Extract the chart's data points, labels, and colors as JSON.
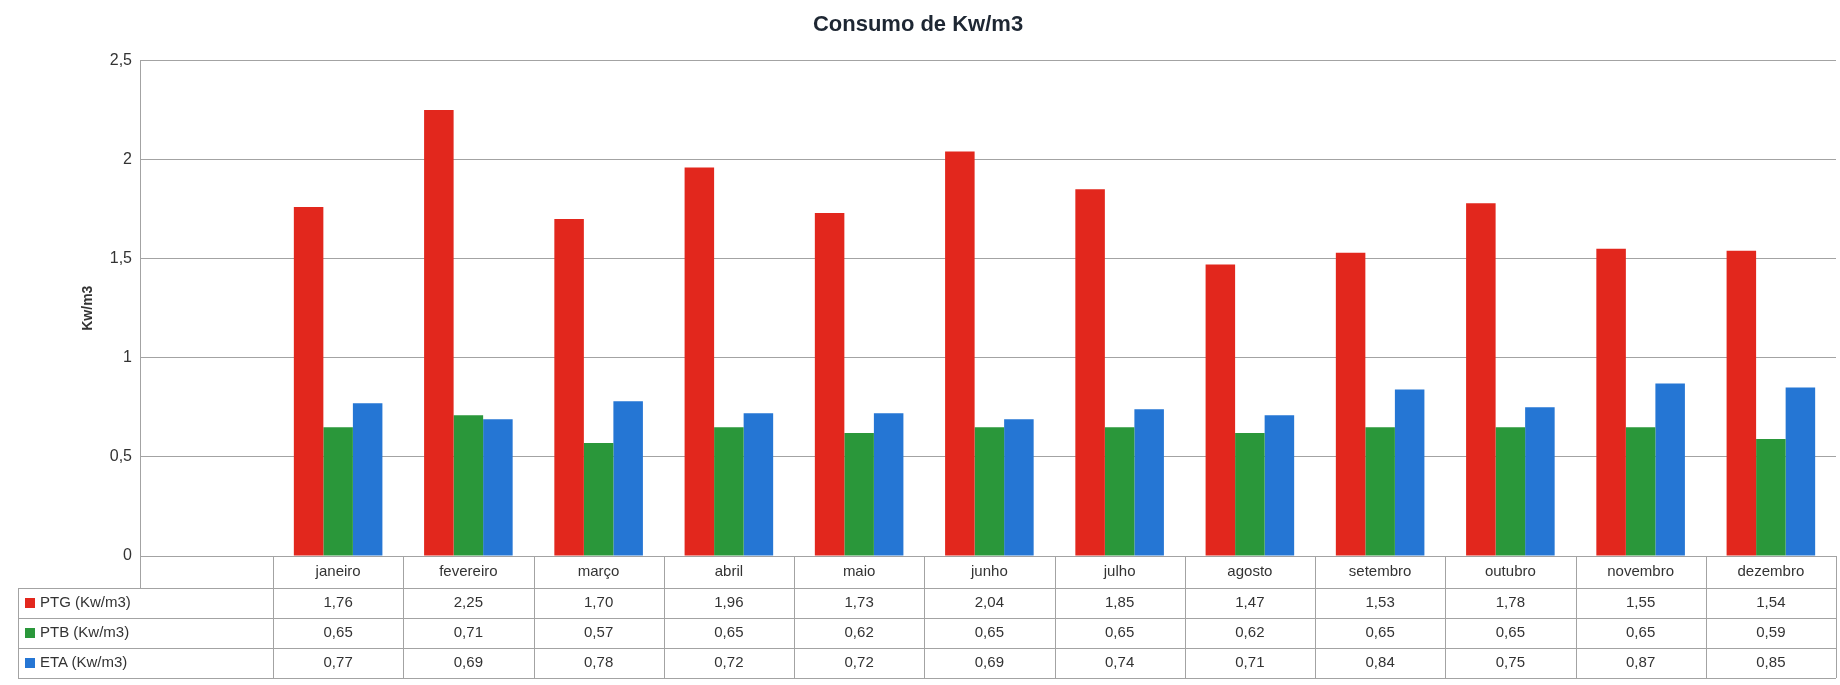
{
  "chart_data": {
    "type": "bar",
    "title": "Consumo de Kw/m3",
    "ylabel": "Kw/m3",
    "categories": [
      "janeiro",
      "fevereiro",
      "março",
      "abril",
      "maio",
      "junho",
      "julho",
      "agosto",
      "setembro",
      "outubro",
      "novembro",
      "dezembro"
    ],
    "series": [
      {
        "name": "PTG (Kw/m3)",
        "color": "#e2271d",
        "values": [
          1.76,
          2.25,
          1.7,
          1.96,
          1.73,
          2.04,
          1.85,
          1.47,
          1.53,
          1.78,
          1.55,
          1.54
        ],
        "value_labels": [
          "1,76",
          "2,25",
          "1,70",
          "1,96",
          "1,73",
          "2,04",
          "1,85",
          "1,47",
          "1,53",
          "1,78",
          "1,55",
          "1,54"
        ]
      },
      {
        "name": "PTB (Kw/m3)",
        "color": "#2a973a",
        "values": [
          0.65,
          0.71,
          0.57,
          0.65,
          0.62,
          0.65,
          0.65,
          0.62,
          0.65,
          0.65,
          0.65,
          0.59
        ],
        "value_labels": [
          "0,65",
          "0,71",
          "0,57",
          "0,65",
          "0,62",
          "0,65",
          "0,65",
          "0,62",
          "0,65",
          "0,65",
          "0,65",
          "0,59"
        ]
      },
      {
        "name": "ETA (Kw/m3)",
        "color": "#2576d4",
        "values": [
          0.77,
          0.69,
          0.78,
          0.72,
          0.72,
          0.69,
          0.74,
          0.71,
          0.84,
          0.75,
          0.87,
          0.85
        ],
        "value_labels": [
          "0,77",
          "0,69",
          "0,78",
          "0,72",
          "0,72",
          "0,69",
          "0,74",
          "0,71",
          "0,84",
          "0,75",
          "0,87",
          "0,85"
        ]
      }
    ],
    "ylim": [
      0,
      2.5
    ],
    "yticks": [
      {
        "value": 0,
        "label": "0"
      },
      {
        "value": 0.5,
        "label": "0,5"
      },
      {
        "value": 1,
        "label": "1"
      },
      {
        "value": 1.5,
        "label": "1,5"
      },
      {
        "value": 2,
        "label": "2"
      },
      {
        "value": 2.5,
        "label": "2,5"
      }
    ],
    "grid": "y",
    "legend": "bottom left"
  }
}
